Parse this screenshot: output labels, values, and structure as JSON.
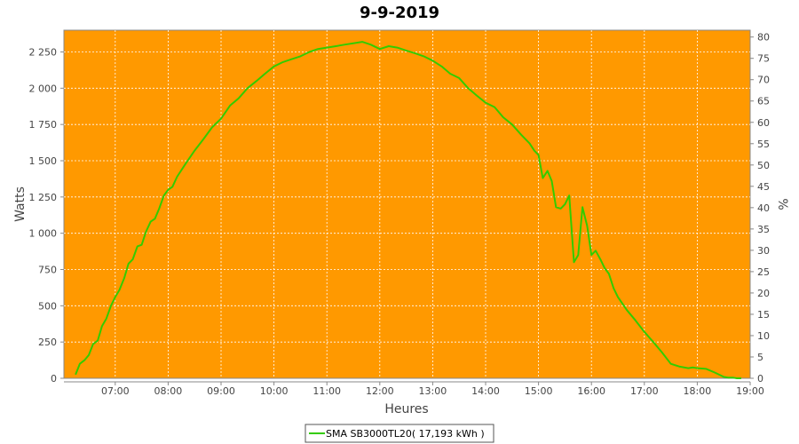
{
  "chart_data": {
    "type": "line",
    "title": "9-9-2019",
    "xlabel": "Heures",
    "ylabel": "Watts",
    "y2label": "%",
    "xlim": [
      6.03,
      19.0
    ],
    "ylim": [
      0,
      2400
    ],
    "y2lim": [
      0,
      81.6
    ],
    "x_ticks": [
      "07:00",
      "08:00",
      "09:00",
      "10:00",
      "11:00",
      "12:00",
      "13:00",
      "14:00",
      "15:00",
      "16:00",
      "17:00",
      "18:00",
      "19:00"
    ],
    "y_ticks": [
      "0",
      "250",
      "500",
      "750",
      "1 000",
      "1 250",
      "1 500",
      "1 750",
      "2 000",
      "2 250"
    ],
    "y2_ticks": [
      "0",
      "5",
      "10",
      "15",
      "20",
      "25",
      "30",
      "35",
      "40",
      "45",
      "50",
      "55",
      "60",
      "65",
      "70",
      "75",
      "80"
    ],
    "grid": true,
    "background": "#ff9900",
    "legend_position": "bottom-center",
    "series": [
      {
        "name": "SMA SB3000TL20( 17,193 kWh )",
        "color": "#33cc00",
        "x": [
          6.25,
          6.33,
          6.42,
          6.5,
          6.58,
          6.67,
          6.75,
          6.83,
          6.92,
          7.0,
          7.08,
          7.17,
          7.25,
          7.33,
          7.42,
          7.5,
          7.58,
          7.67,
          7.75,
          7.83,
          7.92,
          8.0,
          8.08,
          8.17,
          8.33,
          8.5,
          8.67,
          8.83,
          9.0,
          9.17,
          9.33,
          9.5,
          9.67,
          9.83,
          10.0,
          10.17,
          10.33,
          10.5,
          10.67,
          10.83,
          11.0,
          11.17,
          11.33,
          11.5,
          11.67,
          11.83,
          12.0,
          12.17,
          12.33,
          12.5,
          12.67,
          12.83,
          13.0,
          13.17,
          13.33,
          13.5,
          13.67,
          13.83,
          14.0,
          14.17,
          14.33,
          14.5,
          14.67,
          14.83,
          14.92,
          15.0,
          15.08,
          15.17,
          15.25,
          15.33,
          15.42,
          15.5,
          15.58,
          15.67,
          15.75,
          15.83,
          15.92,
          16.0,
          16.08,
          16.17,
          16.25,
          16.33,
          16.42,
          16.5,
          16.67,
          16.83,
          17.0,
          17.17,
          17.33,
          17.5,
          17.67,
          17.83,
          17.92,
          18.0,
          18.17,
          18.33,
          18.5,
          18.58,
          18.67,
          18.75,
          18.83
        ],
        "y": [
          25,
          100,
          125,
          160,
          235,
          260,
          360,
          410,
          500,
          560,
          610,
          690,
          790,
          820,
          910,
          920,
          1010,
          1080,
          1100,
          1170,
          1260,
          1300,
          1320,
          1390,
          1480,
          1570,
          1650,
          1730,
          1790,
          1880,
          1930,
          2000,
          2050,
          2100,
          2150,
          2180,
          2200,
          2220,
          2250,
          2270,
          2280,
          2290,
          2300,
          2310,
          2320,
          2300,
          2270,
          2290,
          2280,
          2260,
          2240,
          2220,
          2190,
          2150,
          2100,
          2070,
          2000,
          1950,
          1900,
          1870,
          1800,
          1750,
          1680,
          1620,
          1570,
          1540,
          1380,
          1430,
          1360,
          1180,
          1170,
          1200,
          1260,
          800,
          850,
          1180,
          1050,
          850,
          880,
          820,
          760,
          720,
          620,
          560,
          470,
          400,
          320,
          250,
          180,
          100,
          80,
          70,
          75,
          70,
          65,
          40,
          10,
          5,
          5,
          0,
          0
        ]
      }
    ]
  }
}
